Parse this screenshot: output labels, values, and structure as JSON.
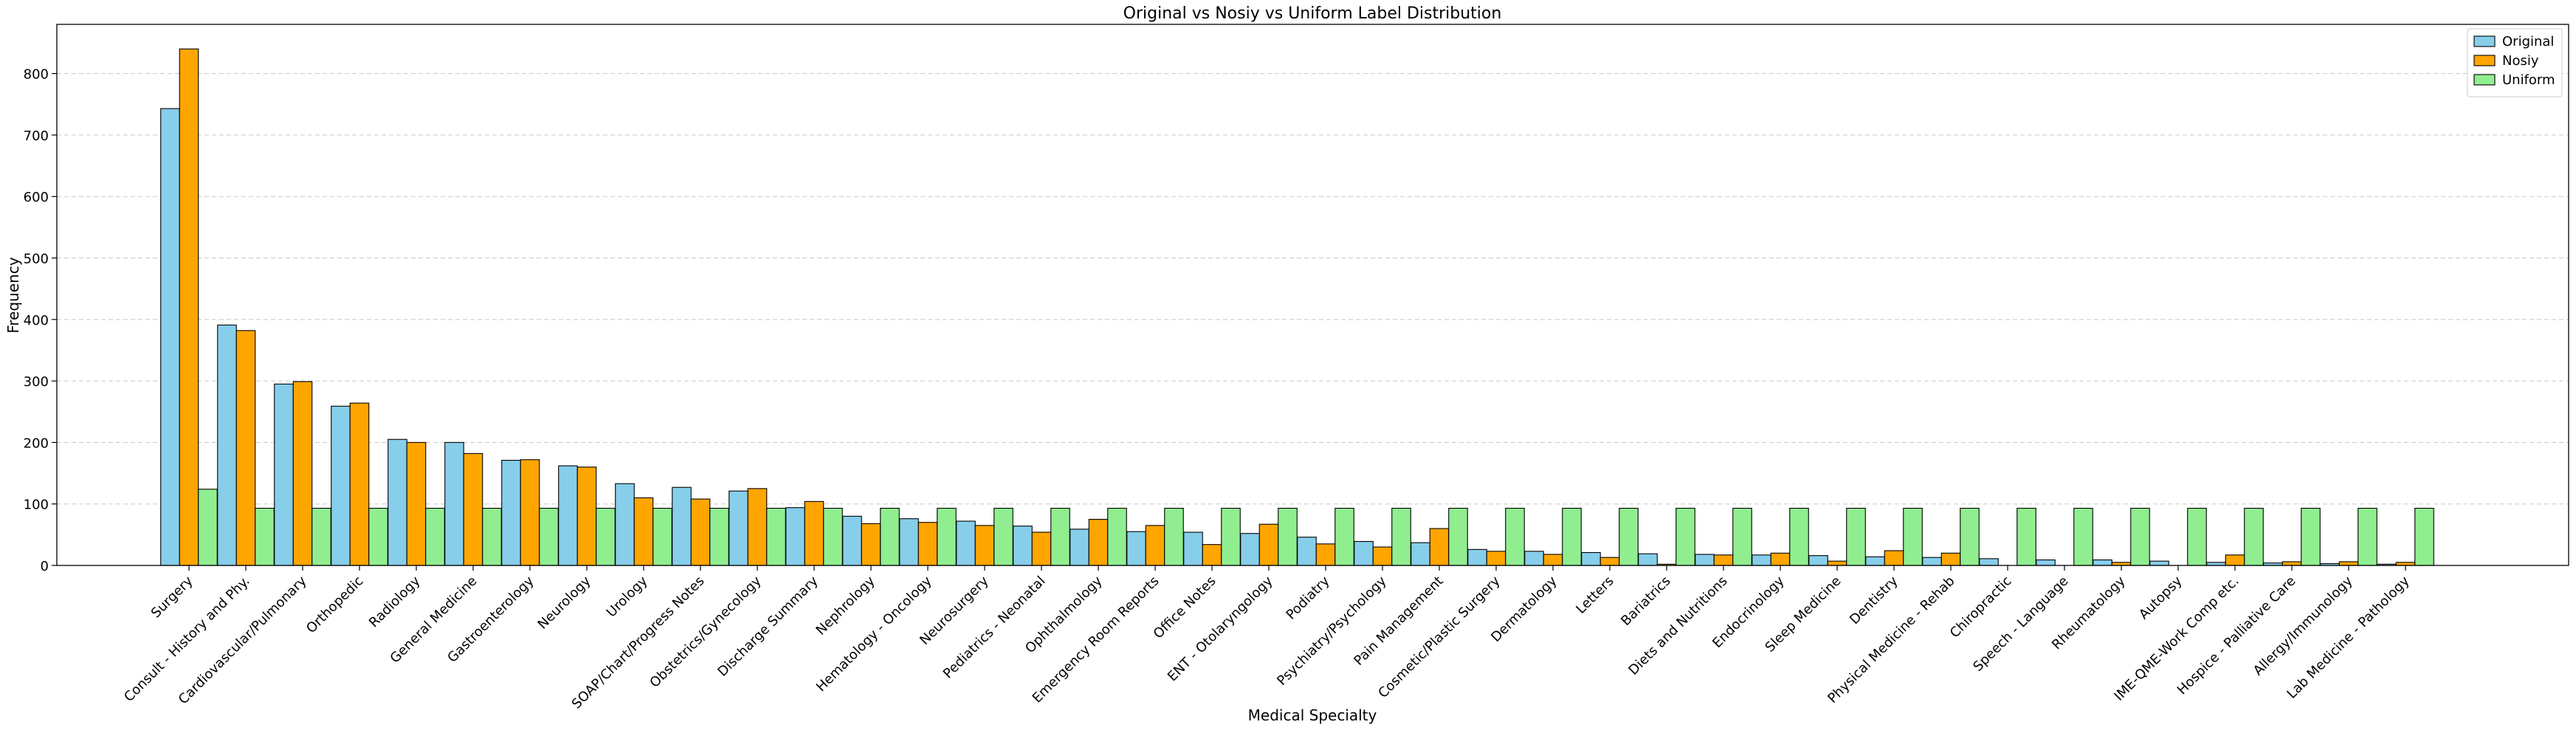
{
  "chart_data": {
    "type": "bar",
    "title": "Original vs Nosiy vs Uniform Label Distribution",
    "xlabel": "Medical Specialty",
    "ylabel": "Frequency",
    "ylim": [
      0,
      880
    ],
    "yticks": [
      0,
      100,
      200,
      300,
      400,
      500,
      600,
      700,
      800
    ],
    "grid": "y-dashed",
    "legend_position": "top-right",
    "categories": [
      "Surgery",
      "Consult - History and Phy.",
      "Cardiovascular/Pulmonary",
      "Orthopedic",
      "Radiology",
      "General Medicine",
      "Gastroenterology",
      "Neurology",
      "Urology",
      "SOAP/Chart/Progress Notes",
      "Obstetrics/Gynecology",
      "Discharge Summary",
      "Nephrology",
      "Hematology - Oncology",
      "Neurosurgery",
      "Pediatrics - Neonatal",
      "Ophthalmology",
      "Emergency Room Reports",
      "Office Notes",
      "ENT - Otolaryngology",
      "Podiatry",
      "Psychiatry/Psychology",
      "Pain Management",
      "Cosmetic/Plastic Surgery",
      "Dermatology",
      "Letters",
      "Bariatrics",
      "Diets and Nutritions",
      "Endocrinology",
      "Sleep Medicine",
      "Dentistry",
      "Physical Medicine - Rehab",
      "Chiropractic",
      "Speech - Language",
      "Rheumatology",
      "Autopsy",
      "IME-QME-Work Comp etc.",
      "Hospice - Palliative Care",
      "Allergy/Immunology",
      "Lab Medicine - Pathology"
    ],
    "series": [
      {
        "name": "Original",
        "color": "#87ceeb",
        "values": [
          743,
          391,
          295,
          259,
          205,
          200,
          171,
          162,
          133,
          127,
          121,
          94,
          80,
          76,
          72,
          64,
          59,
          55,
          54,
          52,
          46,
          39,
          37,
          26,
          23,
          21,
          19,
          18,
          17,
          16,
          14,
          13,
          11,
          9,
          9,
          7,
          5,
          4,
          3,
          2
        ]
      },
      {
        "name": "Nosiy",
        "color": "#ffa500",
        "values": [
          840,
          382,
          299,
          264,
          200,
          182,
          172,
          160,
          110,
          108,
          125,
          104,
          68,
          70,
          65,
          54,
          75,
          65,
          34,
          67,
          35,
          30,
          60,
          23,
          18,
          13,
          2,
          17,
          20,
          7,
          24,
          20,
          0,
          0,
          5,
          0,
          17,
          6,
          6,
          5
        ]
      },
      {
        "name": "Uniform",
        "color": "#90ee90",
        "values": [
          124,
          93,
          93,
          93,
          93,
          93,
          93,
          93,
          93,
          93,
          93,
          93,
          93,
          93,
          93,
          93,
          93,
          93,
          93,
          93,
          93,
          93,
          93,
          93,
          93,
          93,
          93,
          93,
          93,
          93,
          93,
          93,
          93,
          93,
          93,
          93,
          93,
          93,
          93,
          93
        ]
      }
    ]
  }
}
